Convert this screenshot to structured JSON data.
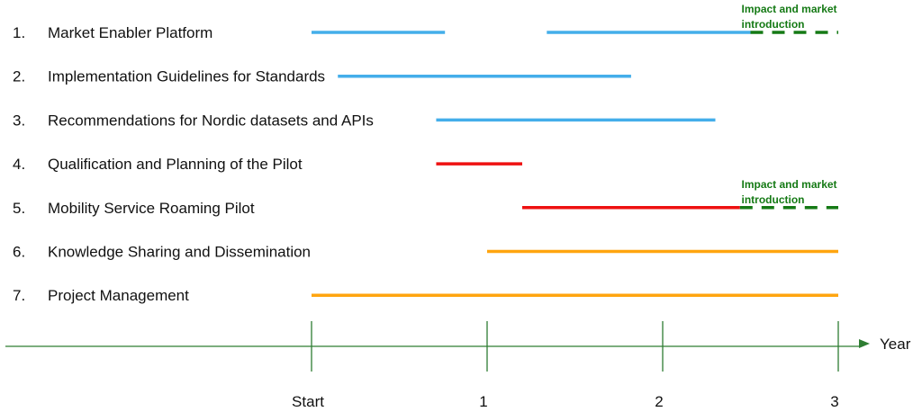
{
  "tasks": [
    {
      "number": "1.",
      "label": "Market Enabler Platform",
      "segments": [
        {
          "start": 0.0,
          "end": 0.76,
          "style": "blue"
        },
        {
          "start": 1.34,
          "end": 2.5,
          "style": "blue"
        },
        {
          "start": 2.5,
          "end": 3.0,
          "style": "green-dashed"
        }
      ],
      "annotation": {
        "lines": [
          "Impact and market",
          "introduction"
        ],
        "at": 2.5
      }
    },
    {
      "number": "2.",
      "label": "Implementation Guidelines for Standards",
      "segments": [
        {
          "start": 0.15,
          "end": 1.82,
          "style": "blue"
        }
      ]
    },
    {
      "number": "3.",
      "label": "Recommendations for Nordic datasets and APIs",
      "segments": [
        {
          "start": 0.71,
          "end": 2.3,
          "style": "blue"
        }
      ]
    },
    {
      "number": "4.",
      "label": "Qualification and Planning of the Pilot",
      "segments": [
        {
          "start": 0.71,
          "end": 1.2,
          "style": "red"
        }
      ]
    },
    {
      "number": "5.",
      "label": "Mobility Service Roaming Pilot",
      "segments": [
        {
          "start": 1.2,
          "end": 2.44,
          "style": "red"
        },
        {
          "start": 2.44,
          "end": 3.0,
          "style": "green-dashed"
        }
      ],
      "annotation": {
        "lines": [
          "Impact and market",
          "introduction"
        ],
        "at": 2.5
      }
    },
    {
      "number": "6.",
      "label": "Knowledge Sharing and Dissemination",
      "segments": [
        {
          "start": 1.0,
          "end": 3.0,
          "style": "orange"
        }
      ]
    },
    {
      "number": "7.",
      "label": "Project Management",
      "segments": [
        {
          "start": 0.0,
          "end": 3.0,
          "style": "orange"
        }
      ]
    }
  ],
  "axis": {
    "label": "Year",
    "ticks": [
      {
        "value": 0,
        "label": "Start"
      },
      {
        "value": 1,
        "label": "1"
      },
      {
        "value": 2,
        "label": "2"
      },
      {
        "value": 3,
        "label": "3"
      }
    ]
  },
  "colors": {
    "blue": "#44aeea",
    "red": "#ee1111",
    "orange": "#ffa50f",
    "green": "#157a15",
    "axis": "#2e7d32",
    "text": "#111111"
  }
}
